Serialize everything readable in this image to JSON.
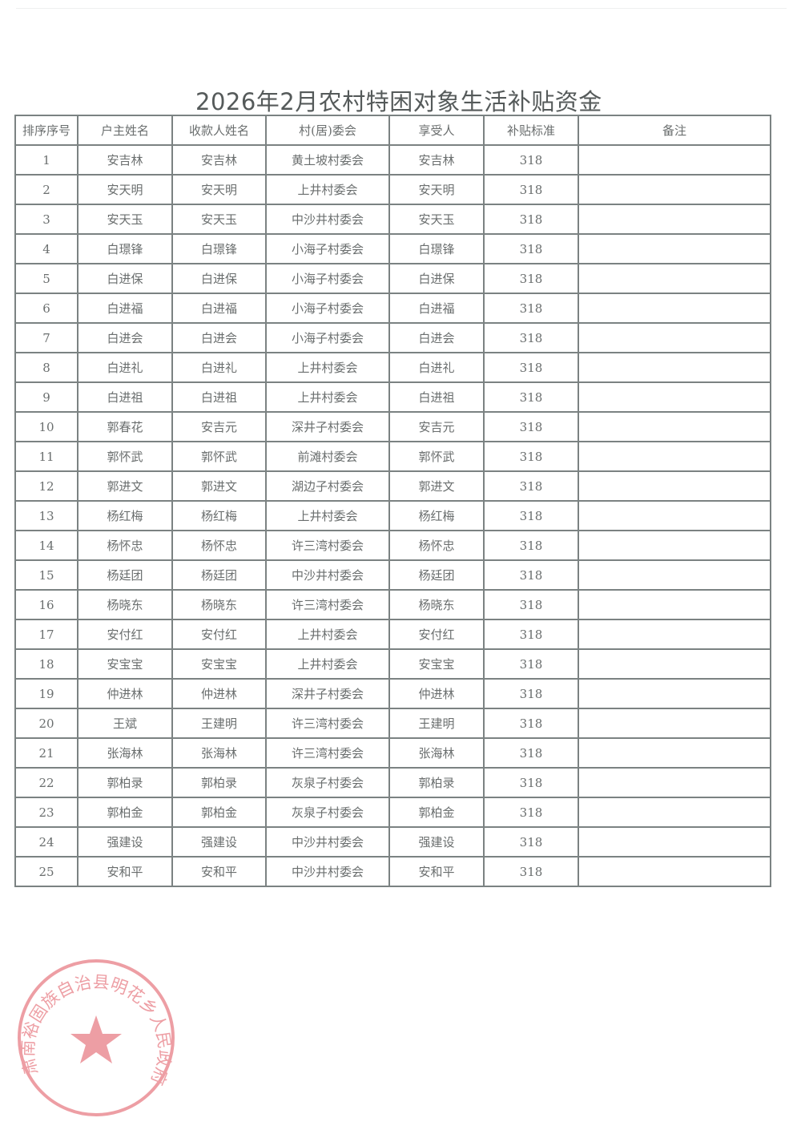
{
  "title": "2026年2月农村特困对象生活补贴资金",
  "stamp": {
    "text": "肃南裕固族自治县明花乡人民政府",
    "color": "#e0505a"
  },
  "table": {
    "headers": [
      "排序序号",
      "户主姓名",
      "收款人姓名",
      "村(居)委会",
      "享受人",
      "补贴标准",
      "备注"
    ],
    "rows": [
      [
        "1",
        "安吉林",
        "安吉林",
        "黄土坡村委会",
        "安吉林",
        "318",
        ""
      ],
      [
        "2",
        "安天明",
        "安天明",
        "上井村委会",
        "安天明",
        "318",
        ""
      ],
      [
        "3",
        "安天玉",
        "安天玉",
        "中沙井村委会",
        "安天玉",
        "318",
        ""
      ],
      [
        "4",
        "白璟锋",
        "白璟锋",
        "小海子村委会",
        "白璟锋",
        "318",
        ""
      ],
      [
        "5",
        "白进保",
        "白进保",
        "小海子村委会",
        "白进保",
        "318",
        ""
      ],
      [
        "6",
        "白进福",
        "白进福",
        "小海子村委会",
        "白进福",
        "318",
        ""
      ],
      [
        "7",
        "白进会",
        "白进会",
        "小海子村委会",
        "白进会",
        "318",
        ""
      ],
      [
        "8",
        "白进礼",
        "白进礼",
        "上井村委会",
        "白进礼",
        "318",
        ""
      ],
      [
        "9",
        "白进祖",
        "白进祖",
        "上井村委会",
        "白进祖",
        "318",
        ""
      ],
      [
        "10",
        "郭春花",
        "安吉元",
        "深井子村委会",
        "安吉元",
        "318",
        ""
      ],
      [
        "11",
        "郭怀武",
        "郭怀武",
        "前滩村委会",
        "郭怀武",
        "318",
        ""
      ],
      [
        "12",
        "郭进文",
        "郭进文",
        "湖边子村委会",
        "郭进文",
        "318",
        ""
      ],
      [
        "13",
        "杨红梅",
        "杨红梅",
        "上井村委会",
        "杨红梅",
        "318",
        ""
      ],
      [
        "14",
        "杨怀忠",
        "杨怀忠",
        "许三湾村委会",
        "杨怀忠",
        "318",
        ""
      ],
      [
        "15",
        "杨廷团",
        "杨廷团",
        "中沙井村委会",
        "杨廷团",
        "318",
        ""
      ],
      [
        "16",
        "杨晓东",
        "杨晓东",
        "许三湾村委会",
        "杨晓东",
        "318",
        ""
      ],
      [
        "17",
        "安付红",
        "安付红",
        "上井村委会",
        "安付红",
        "318",
        ""
      ],
      [
        "18",
        "安宝宝",
        "安宝宝",
        "上井村委会",
        "安宝宝",
        "318",
        ""
      ],
      [
        "19",
        "仲进林",
        "仲进林",
        "深井子村委会",
        "仲进林",
        "318",
        ""
      ],
      [
        "20",
        "王斌",
        "王建明",
        "许三湾村委会",
        "王建明",
        "318",
        ""
      ],
      [
        "21",
        "张海林",
        "张海林",
        "许三湾村委会",
        "张海林",
        "318",
        ""
      ],
      [
        "22",
        "郭柏录",
        "郭柏录",
        "灰泉子村委会",
        "郭柏录",
        "318",
        ""
      ],
      [
        "23",
        "郭柏金",
        "郭柏金",
        "灰泉子村委会",
        "郭柏金",
        "318",
        ""
      ],
      [
        "24",
        "强建设",
        "强建设",
        "中沙井村委会",
        "强建设",
        "318",
        ""
      ],
      [
        "25",
        "安和平",
        "安和平",
        "中沙井村委会",
        "安和平",
        "318",
        ""
      ]
    ]
  }
}
